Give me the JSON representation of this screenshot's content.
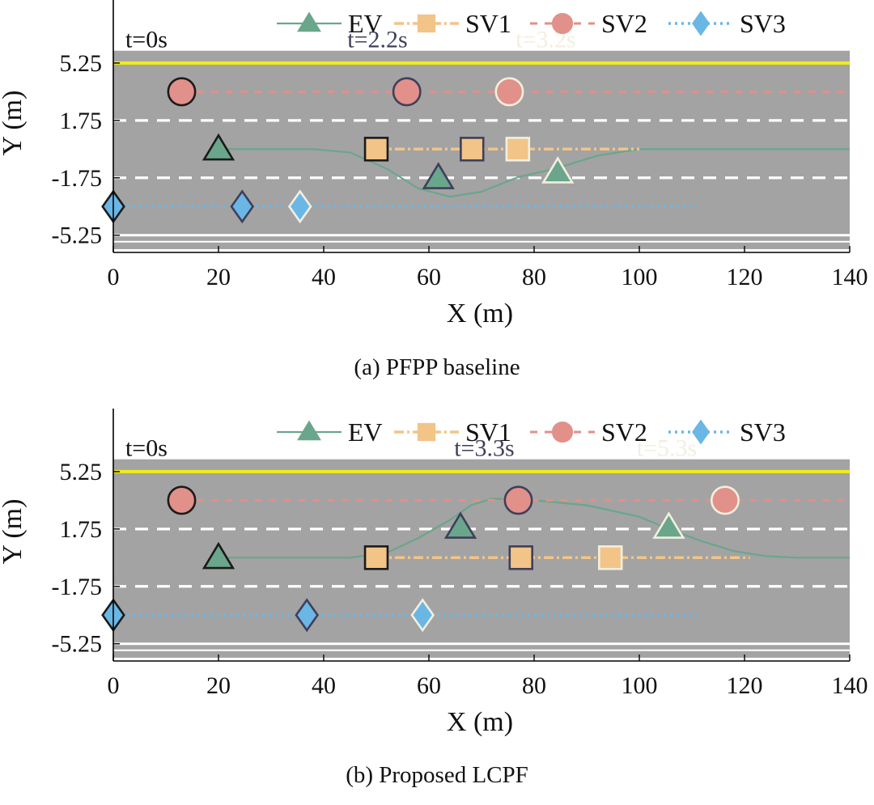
{
  "chart_data": [
    {
      "type": "line",
      "caption": "(a)  PFPP baseline",
      "xlabel": "X (m)",
      "ylabel": "Y (m)",
      "xlim": [
        0,
        140
      ],
      "ylim": [
        -6.3,
        8.7
      ],
      "road_y": [
        -6.1,
        6.0
      ],
      "x_ticks": [
        0,
        20,
        40,
        60,
        80,
        100,
        120,
        140
      ],
      "y_ticks": [
        {
          "value": 5.25,
          "label": "5.25"
        },
        {
          "value": 1.75,
          "label": "1.75"
        },
        {
          "value": -1.75,
          "label": "-1.75"
        },
        {
          "value": -5.25,
          "label": "-5.25"
        }
      ],
      "lane_lines": {
        "top_yellow": 5.25,
        "dashed": [
          1.75,
          -1.75
        ],
        "bottom_white": -5.25
      },
      "legend": [
        "EV",
        "SV1",
        "SV2",
        "SV3"
      ],
      "time_labels": [
        {
          "label": "t=0s",
          "x": 2.3,
          "y": 6.2
        },
        {
          "label": "t=2.2s",
          "x": 44.5,
          "y": 6.2
        },
        {
          "label": "t=3.2s",
          "x": 76.5,
          "y": 6.2
        }
      ],
      "series": [
        {
          "name": "EV",
          "color": "#6aa68b",
          "path": [
            [
              20,
              0
            ],
            [
              30,
              0
            ],
            [
              38,
              0
            ],
            [
              45,
              -0.2
            ],
            [
              52,
              -1.2
            ],
            [
              58,
              -2.4
            ],
            [
              64,
              -2.9
            ],
            [
              70,
              -2.6
            ],
            [
              77,
              -1.7
            ],
            [
              84,
              -1.2
            ],
            [
              92,
              -0.4
            ],
            [
              100,
              0
            ],
            [
              110,
              0
            ],
            [
              140,
              0
            ]
          ],
          "markers": [
            {
              "x": 20,
              "y": 0
            },
            {
              "x": 61.8,
              "y": -1.75
            },
            {
              "x": 84.5,
              "y": -1.4
            }
          ]
        },
        {
          "name": "SV1",
          "color": "#f2c488",
          "path": [
            [
              50,
              0
            ],
            [
              100,
              0
            ]
          ],
          "markers": [
            {
              "x": 50,
              "y": 0
            },
            {
              "x": 68.2,
              "y": 0
            },
            {
              "x": 76.9,
              "y": 0
            }
          ]
        },
        {
          "name": "SV2",
          "color": "#e2908a",
          "path": [
            [
              13,
              3.5
            ],
            [
              140,
              3.5
            ]
          ],
          "markers": [
            {
              "x": 13,
              "y": 3.5
            },
            {
              "x": 55.8,
              "y": 3.5
            },
            {
              "x": 75.3,
              "y": 3.5
            }
          ]
        },
        {
          "name": "SV3",
          "color": "#6ab7e6",
          "path": [
            [
              0,
              -3.5
            ],
            [
              111,
              -3.5
            ]
          ],
          "markers": [
            {
              "x": 0,
              "y": -3.5
            },
            {
              "x": 24.5,
              "y": -3.5
            },
            {
              "x": 35.5,
              "y": -3.5
            }
          ]
        }
      ]
    },
    {
      "type": "line",
      "caption": "(b)  Proposed LCPF",
      "xlabel": "X (m)",
      "ylabel": "Y (m)",
      "xlim": [
        0,
        140
      ],
      "ylim": [
        -6.3,
        8.7
      ],
      "road_y": [
        -6.1,
        6.0
      ],
      "x_ticks": [
        0,
        20,
        40,
        60,
        80,
        100,
        120,
        140
      ],
      "y_ticks": [
        {
          "value": 5.25,
          "label": "5.25"
        },
        {
          "value": 1.75,
          "label": "1.75"
        },
        {
          "value": -1.75,
          "label": "-1.75"
        },
        {
          "value": -5.25,
          "label": "-5.25"
        }
      ],
      "lane_lines": {
        "top_yellow": 5.25,
        "dashed": [
          1.75,
          -1.75
        ],
        "bottom_white": -5.25
      },
      "legend": [
        "EV",
        "SV1",
        "SV2",
        "SV3"
      ],
      "time_labels": [
        {
          "label": "t=0s",
          "x": 2.3,
          "y": 6.2
        },
        {
          "label": "t=3.3s",
          "x": 64.8,
          "y": 6.2
        },
        {
          "label": "t=5.3s",
          "x": 99.5,
          "y": 6.2
        }
      ],
      "series": [
        {
          "name": "EV",
          "color": "#6aa68b",
          "path": [
            [
              20,
              0
            ],
            [
              35,
              0
            ],
            [
              45,
              0
            ],
            [
              52,
              0.3
            ],
            [
              58,
              1.2
            ],
            [
              64,
              2.3
            ],
            [
              68,
              3.2
            ],
            [
              72,
              3.6
            ],
            [
              80,
              3.5
            ],
            [
              90,
              3.2
            ],
            [
              100,
              2.5
            ],
            [
              106,
              1.7
            ],
            [
              112,
              1.0
            ],
            [
              118,
              0.4
            ],
            [
              124,
              0.1
            ],
            [
              130,
              0
            ],
            [
              140,
              0
            ]
          ],
          "markers": [
            {
              "x": 20,
              "y": 0
            },
            {
              "x": 66,
              "y": 1.85
            },
            {
              "x": 105.6,
              "y": 1.85
            }
          ]
        },
        {
          "name": "SV1",
          "color": "#f2c488",
          "path": [
            [
              50,
              0
            ],
            [
              121,
              0
            ]
          ],
          "markers": [
            {
              "x": 50,
              "y": 0
            },
            {
              "x": 77.5,
              "y": 0
            },
            {
              "x": 94.5,
              "y": 0
            }
          ]
        },
        {
          "name": "SV2",
          "color": "#e2908a",
          "path": [
            [
              13,
              3.5
            ],
            [
              140,
              3.5
            ]
          ],
          "markers": [
            {
              "x": 13,
              "y": 3.5
            },
            {
              "x": 77,
              "y": 3.5
            },
            {
              "x": 116.3,
              "y": 3.5
            }
          ]
        },
        {
          "name": "SV3",
          "color": "#6ab7e6",
          "path": [
            [
              0,
              -3.5
            ],
            [
              111,
              -3.5
            ]
          ],
          "markers": [
            {
              "x": 0,
              "y": -3.5
            },
            {
              "x": 36.8,
              "y": -3.5
            },
            {
              "x": 58.8,
              "y": -3.5
            }
          ]
        }
      ]
    }
  ],
  "colors": {
    "road": "#a3a3a3",
    "yellow_line": "#f0ec17",
    "lane_dash": "#ffffff",
    "marker_edges": [
      "#1b1b1b",
      "#3f3f5c",
      "#f2efdf"
    ],
    "time_label_colors": [
      "#111111",
      "#3f3f5c",
      "#f2efdf"
    ]
  }
}
